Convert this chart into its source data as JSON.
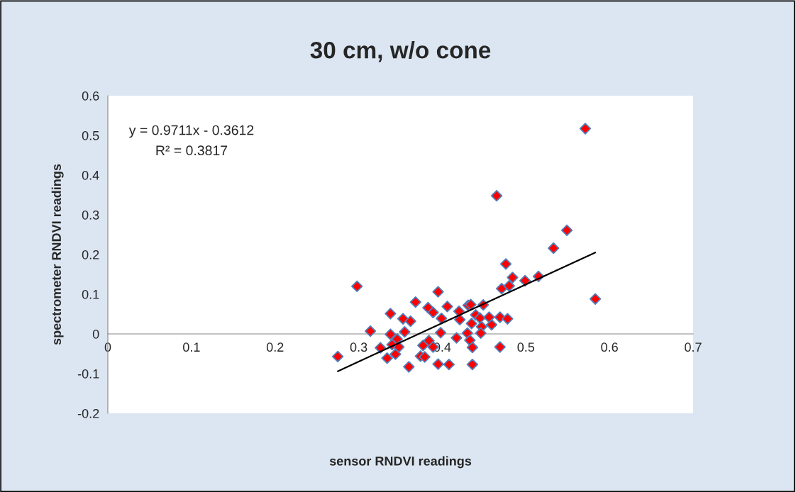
{
  "chart_data": {
    "type": "scatter",
    "title": "30 cm, w/o cone",
    "xlabel": "sensor RNDVI readings",
    "ylabel": "spectrometer RNDVI readings",
    "xlim": [
      0,
      0.7
    ],
    "xticks": [
      0,
      0.1,
      0.2,
      0.3,
      0.4,
      0.5,
      0.6,
      0.7
    ],
    "ylim": [
      -0.2,
      0.6
    ],
    "yticks": [
      -0.2,
      -0.1,
      0,
      0.1,
      0.2,
      0.3,
      0.4,
      0.5,
      0.6
    ],
    "grid": false,
    "legend": false,
    "marker": "diamond",
    "annotations": [
      "y = 0.9711x - 0.3612",
      "R² = 0.3817"
    ],
    "series": [
      {
        "color": "#ff0000",
        "x": [
          0.298,
          0.275,
          0.314,
          0.326,
          0.338,
          0.338,
          0.334,
          0.34,
          0.346,
          0.348,
          0.344,
          0.353,
          0.355,
          0.362,
          0.36,
          0.368,
          0.377,
          0.374,
          0.379,
          0.384,
          0.389,
          0.383,
          0.389,
          0.395,
          0.399,
          0.398,
          0.395,
          0.406,
          0.408,
          0.417,
          0.42,
          0.421,
          0.43,
          0.431,
          0.434,
          0.433,
          0.436,
          0.436,
          0.435,
          0.44,
          0.445,
          0.447,
          0.446,
          0.449,
          0.456,
          0.459,
          0.469,
          0.469,
          0.478,
          0.471,
          0.48,
          0.571,
          0.465,
          0.549,
          0.533,
          0.476,
          0.484,
          0.499,
          0.515,
          0.583
        ],
        "values": [
          0.12,
          -0.057,
          0.007,
          -0.035,
          0.051,
          -0.001,
          -0.061,
          -0.027,
          -0.013,
          -0.033,
          -0.051,
          0.038,
          0.005,
          0.032,
          -0.083,
          0.08,
          -0.029,
          -0.056,
          -0.058,
          -0.017,
          -0.033,
          0.066,
          0.054,
          0.106,
          0.039,
          0.003,
          -0.076,
          0.069,
          -0.077,
          -0.01,
          0.057,
          0.036,
          0.002,
          0.072,
          0.074,
          -0.016,
          -0.034,
          -0.077,
          0.026,
          0.048,
          0.04,
          0.018,
          0.002,
          0.073,
          0.042,
          0.023,
          0.042,
          -0.033,
          0.038,
          0.114,
          0.121,
          0.517,
          0.348,
          0.261,
          0.216,
          0.176,
          0.142,
          0.134,
          0.145,
          0.088
        ]
      },
      {
        "type": "line",
        "color": "#000000",
        "x": [
          0.275,
          0.583
        ],
        "values": [
          -0.094,
          0.205
        ],
        "line_style": "solid",
        "marker": "none"
      }
    ]
  }
}
